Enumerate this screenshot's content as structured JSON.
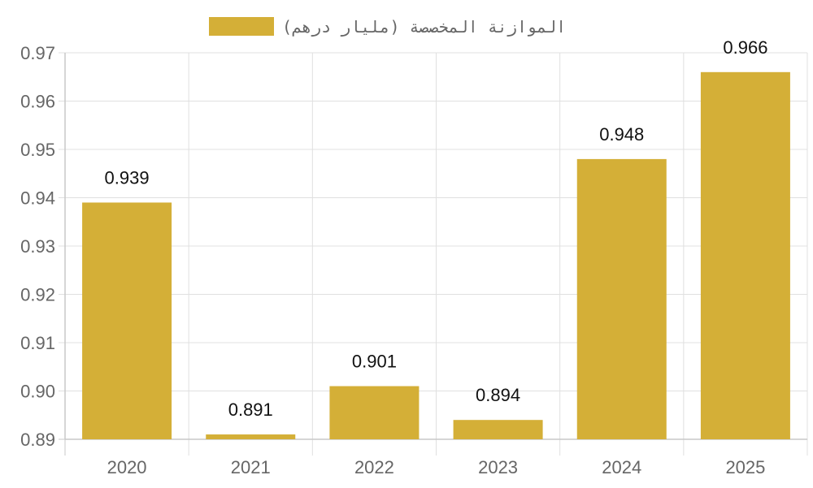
{
  "chart_data": {
    "type": "bar",
    "categories": [
      "2020",
      "2021",
      "2022",
      "2023",
      "2024",
      "2025"
    ],
    "series": [
      {
        "name": "الموازنة المخصصة (مليار درهم)",
        "values": [
          0.939,
          0.891,
          0.901,
          0.894,
          0.948,
          0.966
        ]
      }
    ],
    "data_labels": [
      "0.939",
      "0.891",
      "0.901",
      "0.894",
      "0.948",
      "0.966"
    ],
    "y_ticks": [
      "0.89",
      "0.90",
      "0.91",
      "0.92",
      "0.93",
      "0.94",
      "0.95",
      "0.96",
      "0.97"
    ],
    "ylim": [
      0.89,
      0.97
    ],
    "grid": true,
    "legend_position": "top-center",
    "colors": {
      "bar": "#D4AF37",
      "grid": "#e0e0e0",
      "axis": "#c8c8c8",
      "tick_text": "#666666",
      "label_text": "#111111"
    }
  }
}
